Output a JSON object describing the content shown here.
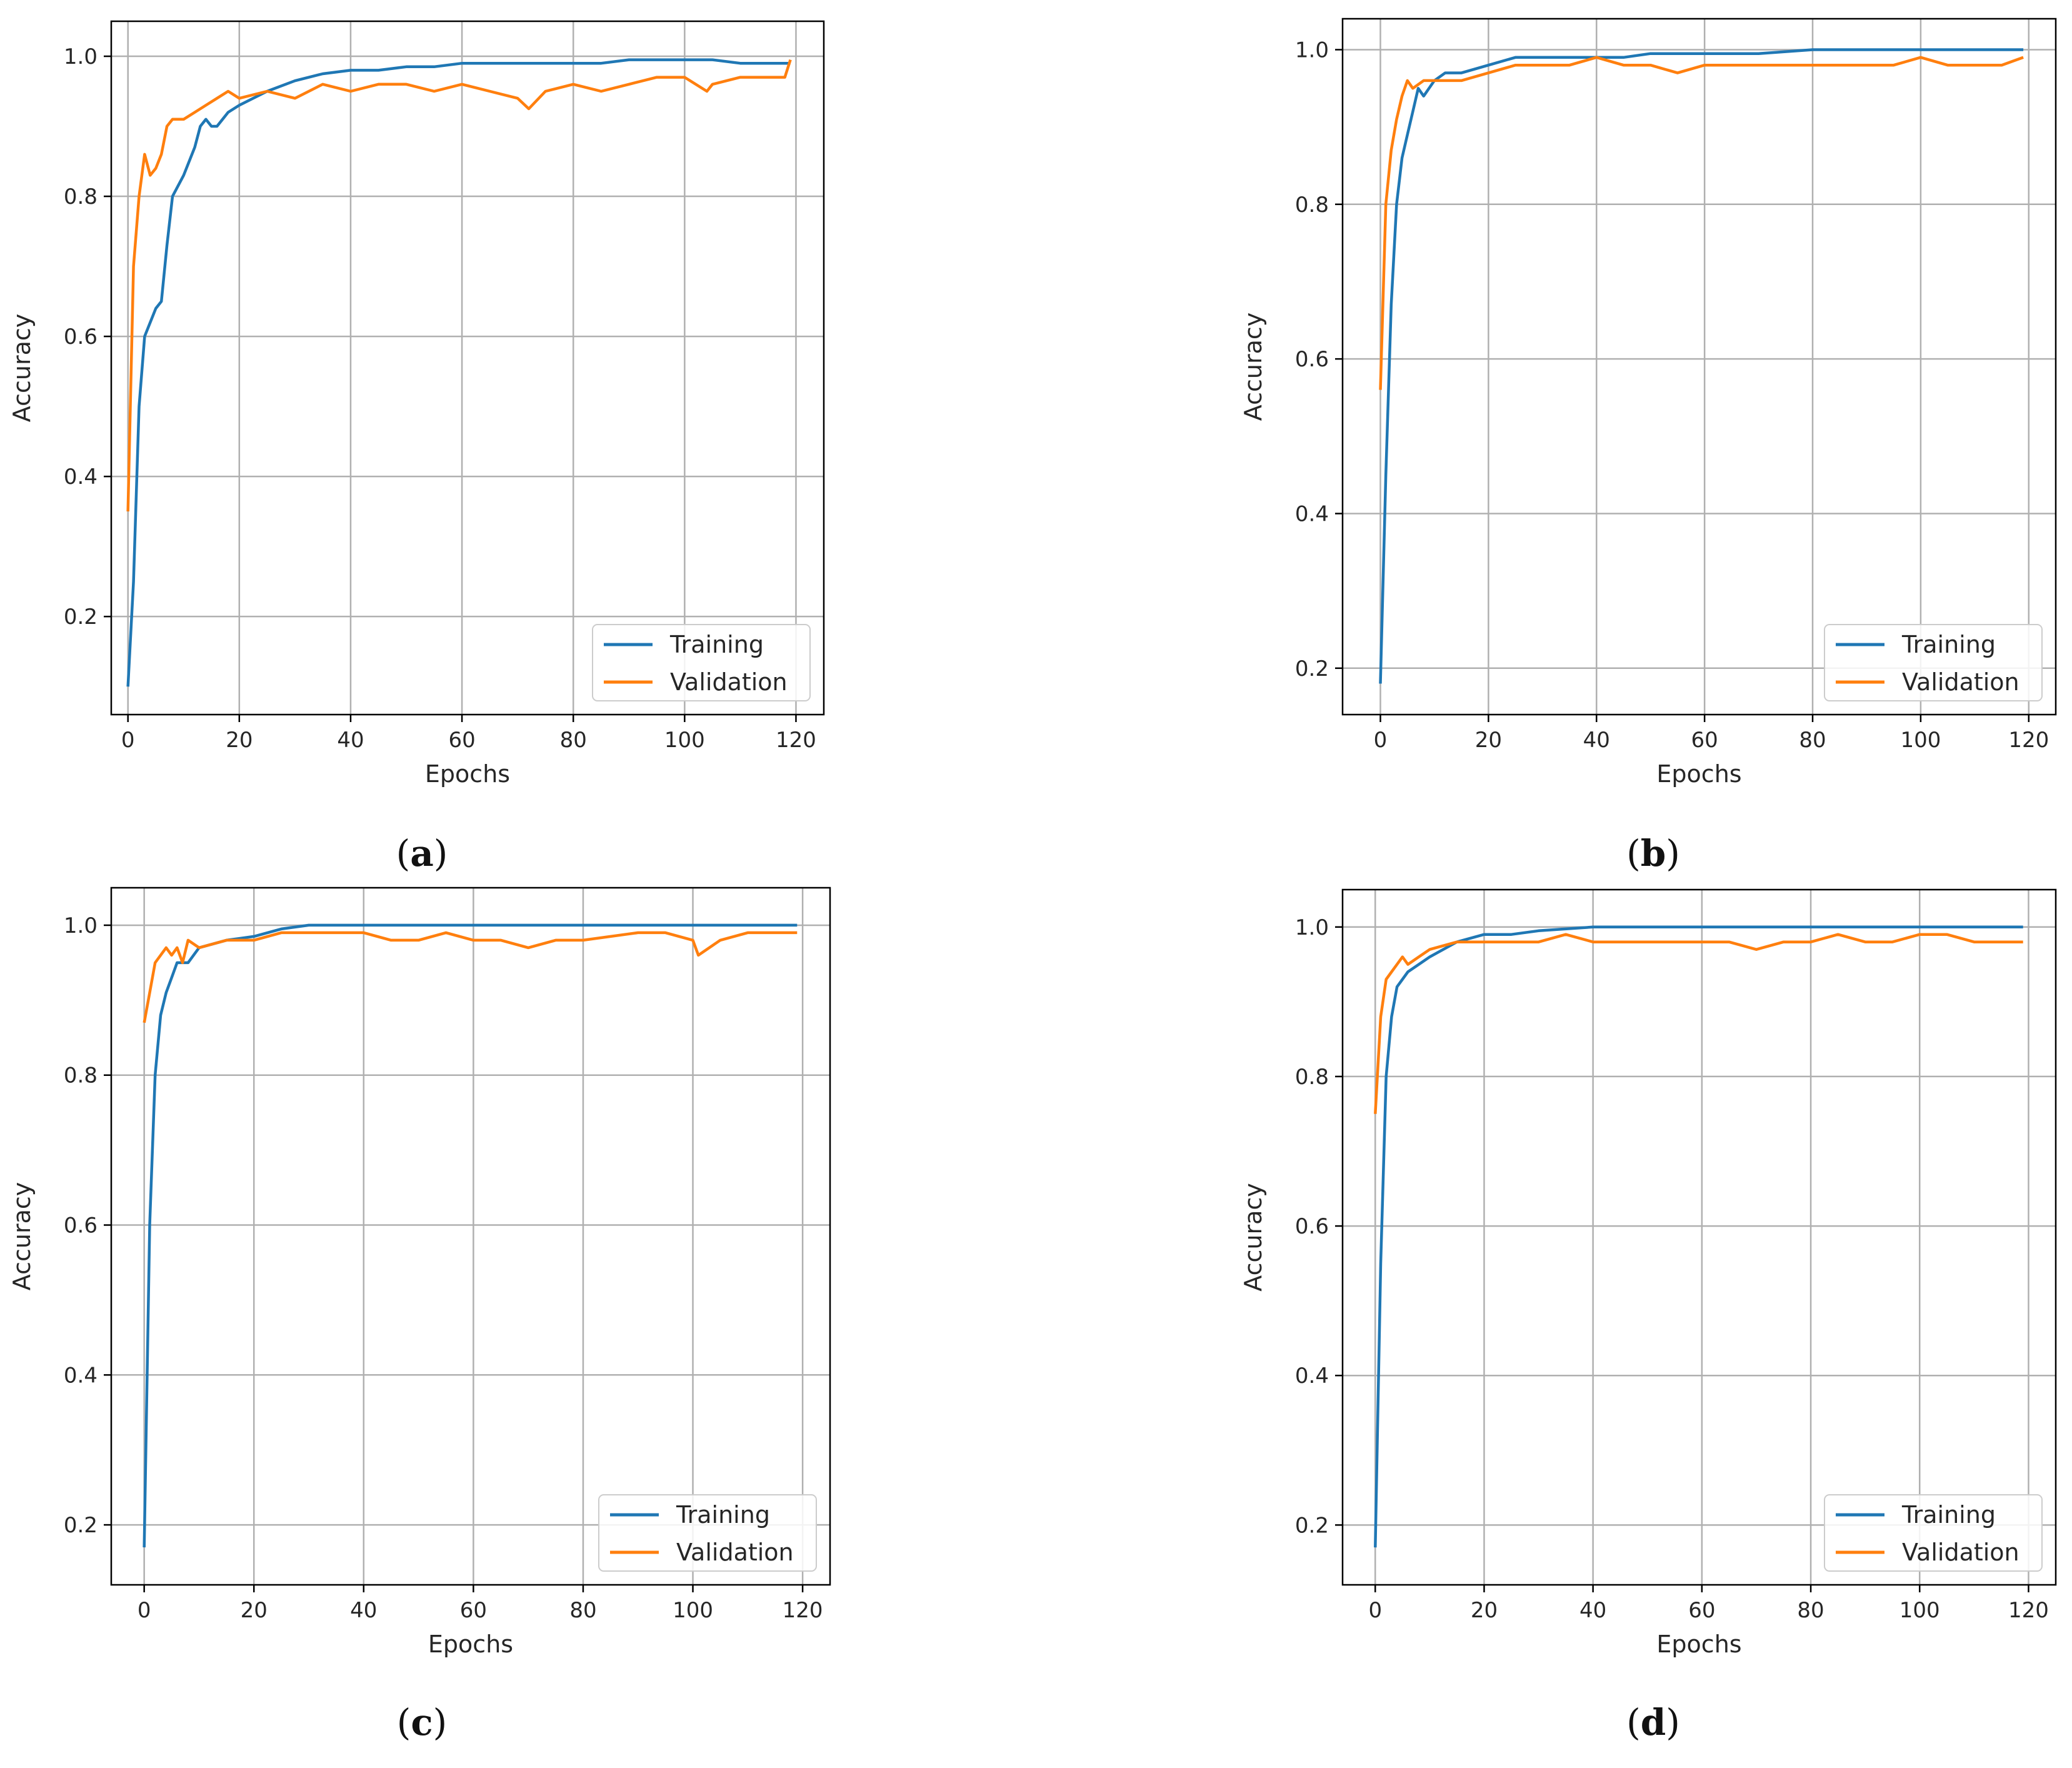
{
  "colors": {
    "training": "#1f77b4",
    "validation": "#ff7f0e",
    "grid": "#b0b0b0",
    "axis": "#000000"
  },
  "chart_data": [
    {
      "type": "line",
      "caption": "a",
      "xlabel": "Epochs",
      "ylabel": "Accuracy",
      "xlim": [
        -3,
        125
      ],
      "ylim": [
        0.06,
        1.05
      ],
      "xticks": [
        0,
        20,
        40,
        60,
        80,
        100,
        120
      ],
      "yticks": [
        0.2,
        0.4,
        0.6,
        0.8,
        1.0
      ],
      "ytick_labels": [
        "0.2",
        "0.4",
        "0.6",
        "0.8",
        "1.0"
      ],
      "grid": true,
      "legend_position": "lower-right",
      "series": [
        {
          "name": "Training",
          "color": "#1f77b4",
          "x": [
            0,
            1,
            2,
            3,
            5,
            6,
            7,
            8,
            10,
            12,
            13,
            14,
            15,
            16,
            17,
            18,
            20,
            25,
            30,
            35,
            40,
            45,
            50,
            55,
            60,
            65,
            70,
            75,
            80,
            85,
            90,
            95,
            100,
            105,
            110,
            115,
            119
          ],
          "values": [
            0.1,
            0.25,
            0.5,
            0.6,
            0.64,
            0.65,
            0.73,
            0.8,
            0.83,
            0.87,
            0.9,
            0.91,
            0.9,
            0.9,
            0.91,
            0.92,
            0.93,
            0.95,
            0.965,
            0.975,
            0.98,
            0.98,
            0.985,
            0.985,
            0.99,
            0.99,
            0.99,
            0.99,
            0.99,
            0.99,
            0.995,
            0.995,
            0.995,
            0.995,
            0.99,
            0.99,
            0.99
          ]
        },
        {
          "name": "Validation",
          "color": "#ff7f0e",
          "x": [
            0,
            1,
            2,
            3,
            4,
            5,
            6,
            7,
            8,
            10,
            12,
            14,
            16,
            18,
            20,
            25,
            30,
            35,
            40,
            45,
            50,
            55,
            60,
            65,
            70,
            72,
            75,
            80,
            85,
            90,
            95,
            100,
            104,
            105,
            110,
            115,
            118,
            119
          ],
          "values": [
            0.35,
            0.7,
            0.8,
            0.86,
            0.83,
            0.84,
            0.86,
            0.9,
            0.91,
            0.91,
            0.92,
            0.93,
            0.94,
            0.95,
            0.94,
            0.95,
            0.94,
            0.96,
            0.95,
            0.96,
            0.96,
            0.95,
            0.96,
            0.95,
            0.94,
            0.925,
            0.95,
            0.96,
            0.95,
            0.96,
            0.97,
            0.97,
            0.95,
            0.96,
            0.97,
            0.97,
            0.97,
            0.995
          ]
        }
      ]
    },
    {
      "type": "line",
      "caption": "b",
      "xlabel": "Epochs",
      "ylabel": "Accuracy",
      "xlim": [
        -7,
        125
      ],
      "ylim": [
        0.14,
        1.04
      ],
      "xticks": [
        0,
        20,
        40,
        60,
        80,
        100,
        120
      ],
      "yticks": [
        0.2,
        0.4,
        0.6,
        0.8,
        1.0
      ],
      "ytick_labels": [
        "0.2",
        "0.4",
        "0.6",
        "0.8",
        "1.0"
      ],
      "grid": true,
      "legend_position": "lower-right",
      "series": [
        {
          "name": "Training",
          "color": "#1f77b4",
          "x": [
            0,
            1,
            2,
            3,
            4,
            5,
            6,
            7,
            8,
            10,
            12,
            15,
            20,
            25,
            30,
            35,
            40,
            45,
            50,
            60,
            70,
            80,
            90,
            100,
            110,
            119
          ],
          "values": [
            0.18,
            0.45,
            0.67,
            0.8,
            0.86,
            0.89,
            0.92,
            0.95,
            0.94,
            0.96,
            0.97,
            0.97,
            0.98,
            0.99,
            0.99,
            0.99,
            0.99,
            0.99,
            0.995,
            0.995,
            0.995,
            1.0,
            1.0,
            1.0,
            1.0,
            1.0
          ]
        },
        {
          "name": "Validation",
          "color": "#ff7f0e",
          "x": [
            0,
            1,
            2,
            3,
            4,
            5,
            6,
            8,
            10,
            15,
            20,
            25,
            30,
            35,
            40,
            45,
            50,
            55,
            60,
            65,
            70,
            75,
            80,
            85,
            90,
            95,
            100,
            105,
            110,
            115,
            119
          ],
          "values": [
            0.56,
            0.8,
            0.87,
            0.91,
            0.94,
            0.96,
            0.95,
            0.96,
            0.96,
            0.96,
            0.97,
            0.98,
            0.98,
            0.98,
            0.99,
            0.98,
            0.98,
            0.97,
            0.98,
            0.98,
            0.98,
            0.98,
            0.98,
            0.98,
            0.98,
            0.98,
            0.99,
            0.98,
            0.98,
            0.98,
            0.99
          ]
        }
      ]
    },
    {
      "type": "line",
      "caption": "c",
      "xlabel": "Epochs",
      "ylabel": "Accuracy",
      "xlim": [
        -6,
        125
      ],
      "ylim": [
        0.12,
        1.05
      ],
      "xticks": [
        0,
        20,
        40,
        60,
        80,
        100,
        120
      ],
      "yticks": [
        0.2,
        0.4,
        0.6,
        0.8,
        1.0
      ],
      "ytick_labels": [
        "0.2",
        "0.4",
        "0.6",
        "0.8",
        "1.0"
      ],
      "grid": true,
      "legend_position": "lower-right",
      "series": [
        {
          "name": "Training",
          "color": "#1f77b4",
          "x": [
            0,
            1,
            2,
            3,
            4,
            5,
            6,
            8,
            10,
            15,
            20,
            25,
            30,
            40,
            50,
            60,
            70,
            80,
            90,
            100,
            110,
            119
          ],
          "values": [
            0.17,
            0.6,
            0.8,
            0.88,
            0.91,
            0.93,
            0.95,
            0.95,
            0.97,
            0.98,
            0.985,
            0.995,
            1.0,
            1.0,
            1.0,
            1.0,
            1.0,
            1.0,
            1.0,
            1.0,
            1.0,
            1.0
          ]
        },
        {
          "name": "Validation",
          "color": "#ff7f0e",
          "x": [
            0,
            1,
            2,
            3,
            4,
            5,
            6,
            7,
            8,
            10,
            15,
            20,
            25,
            30,
            40,
            45,
            50,
            55,
            60,
            65,
            70,
            75,
            80,
            90,
            95,
            100,
            101,
            105,
            110,
            119
          ],
          "values": [
            0.87,
            0.91,
            0.95,
            0.96,
            0.97,
            0.96,
            0.97,
            0.95,
            0.98,
            0.97,
            0.98,
            0.98,
            0.99,
            0.99,
            0.99,
            0.98,
            0.98,
            0.99,
            0.98,
            0.98,
            0.97,
            0.98,
            0.98,
            0.99,
            0.99,
            0.98,
            0.96,
            0.98,
            0.99,
            0.99
          ]
        }
      ]
    },
    {
      "type": "line",
      "caption": "d",
      "xlabel": "Epochs",
      "ylabel": "Accuracy",
      "xlim": [
        -6,
        125
      ],
      "ylim": [
        0.12,
        1.05
      ],
      "xticks": [
        0,
        20,
        40,
        60,
        80,
        100,
        120
      ],
      "yticks": [
        0.2,
        0.4,
        0.6,
        0.8,
        1.0
      ],
      "ytick_labels": [
        "0.2",
        "0.4",
        "0.6",
        "0.8",
        "1.0"
      ],
      "grid": true,
      "legend_position": "lower-right",
      "series": [
        {
          "name": "Training",
          "color": "#1f77b4",
          "x": [
            0,
            1,
            2,
            3,
            4,
            5,
            6,
            8,
            10,
            15,
            20,
            25,
            30,
            40,
            50,
            60,
            70,
            80,
            90,
            100,
            110,
            119
          ],
          "values": [
            0.17,
            0.55,
            0.8,
            0.88,
            0.92,
            0.93,
            0.94,
            0.95,
            0.96,
            0.98,
            0.99,
            0.99,
            0.995,
            1.0,
            1.0,
            1.0,
            1.0,
            1.0,
            1.0,
            1.0,
            1.0,
            1.0
          ]
        },
        {
          "name": "Validation",
          "color": "#ff7f0e",
          "x": [
            0,
            1,
            2,
            3,
            4,
            5,
            6,
            8,
            10,
            15,
            20,
            25,
            30,
            35,
            40,
            45,
            50,
            55,
            60,
            65,
            70,
            75,
            80,
            85,
            90,
            95,
            100,
            105,
            110,
            119
          ],
          "values": [
            0.75,
            0.88,
            0.93,
            0.94,
            0.95,
            0.96,
            0.95,
            0.96,
            0.97,
            0.98,
            0.98,
            0.98,
            0.98,
            0.99,
            0.98,
            0.98,
            0.98,
            0.98,
            0.98,
            0.98,
            0.97,
            0.98,
            0.98,
            0.99,
            0.98,
            0.98,
            0.99,
            0.99,
            0.98,
            0.98
          ]
        }
      ]
    }
  ]
}
